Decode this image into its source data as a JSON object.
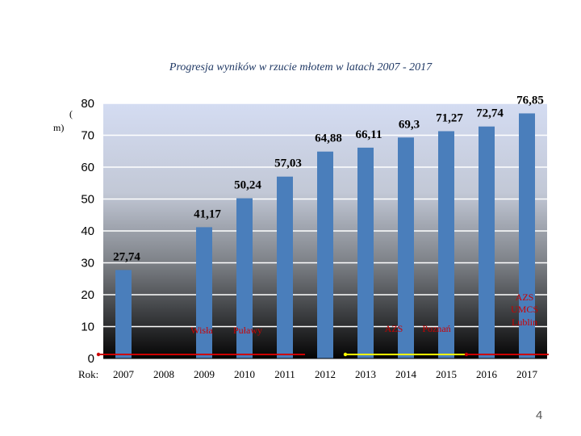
{
  "chart_data": {
    "type": "bar",
    "title": "Progresja wyników w rzucie młotem w latach 2007 - 2017",
    "ylabel_parts": [
      "(",
      "m)"
    ],
    "xlabel": "Rok:",
    "categories": [
      "2007",
      "2008",
      "2009",
      "2010",
      "2011",
      "2012",
      "2013",
      "2014",
      "2015",
      "2016",
      "2017"
    ],
    "values": [
      27.74,
      null,
      41.17,
      50.24,
      57.03,
      64.88,
      66.11,
      69.3,
      71.27,
      72.74,
      76.85
    ],
    "data_labels": [
      "27,74",
      "",
      "41,17",
      "50,24",
      "57,03",
      "64,88",
      "66,11",
      "69,3",
      "71,27",
      "72,74",
      "76,85"
    ],
    "yticks": [
      "0",
      "10",
      "20",
      "30",
      "40",
      "50",
      "60",
      "70",
      "80"
    ],
    "ylim": [
      0,
      80
    ],
    "grid": true,
    "bar_color": "#4a7ebb",
    "annotations": [
      {
        "text": "Wisła",
        "color": "#cc0000"
      },
      {
        "text": "Puławy",
        "color": "#cc0000"
      },
      {
        "text": "AZS",
        "color": "#cc0000"
      },
      {
        "text": "Poznań",
        "color": "#cc0000"
      },
      {
        "text": "AZS",
        "color": "#cc0000"
      },
      {
        "text": "UMCS",
        "color": "#cc0000"
      },
      {
        "text": "Lublin",
        "color": "#cc0000"
      }
    ],
    "club_periods": [
      {
        "from": "2007",
        "to": "2012",
        "color": "#cc0000"
      },
      {
        "from": "2013",
        "to": "2016",
        "color": "#ffff00"
      },
      {
        "from": "2016",
        "to": "2017",
        "color": "#cc0000"
      }
    ]
  },
  "page_number": "4"
}
